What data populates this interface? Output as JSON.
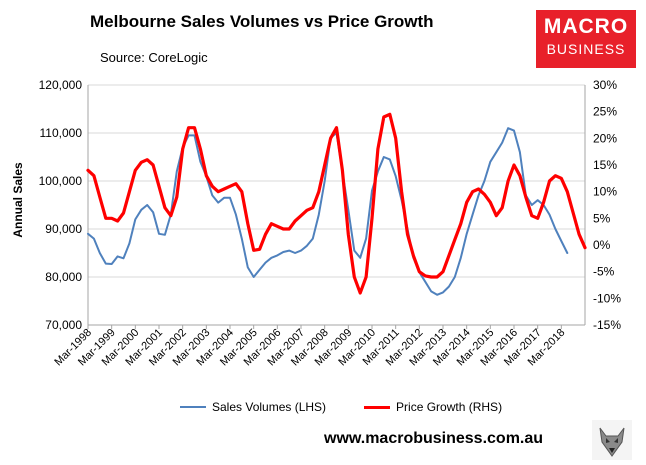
{
  "header": {
    "title": "Melbourne Sales Volumes vs Price Growth",
    "source": "Source: CoreLogic"
  },
  "logo": {
    "line1": "MACRO",
    "line2": "BUSINESS"
  },
  "footer": {
    "website": "www.macrobusiness.com.au"
  },
  "colors": {
    "sales": "#4f81bd",
    "price": "#ff0000"
  },
  "icons": {
    "wolf": "wolf-logo-icon"
  },
  "chart_data": {
    "type": "line",
    "title": "Melbourne Sales Volumes vs Price Growth",
    "ylabel_left": "Annual Sales",
    "ylim_left": [
      70000,
      120000
    ],
    "ylim_right": [
      -15,
      30
    ],
    "left_ticks": [
      "70,000",
      "80,000",
      "90,000",
      "100,000",
      "110,000",
      "120,000"
    ],
    "right_ticks": [
      "-15%",
      "-10%",
      "-5%",
      "0%",
      "5%",
      "10%",
      "15%",
      "20%",
      "25%",
      "30%"
    ],
    "x_tick_labels": [
      "Mar-1998",
      "Mar-1999",
      "Mar-2000",
      "Mar-2001",
      "Mar-2002",
      "Mar-2003",
      "Mar-2004",
      "Mar-2005",
      "Mar-2006",
      "Mar-2007",
      "Mar-2008",
      "Mar-2009",
      "Mar-2010",
      "Mar-2011",
      "Mar-2012",
      "Mar-2013",
      "Mar-2014",
      "Mar-2015",
      "Mar-2016",
      "Mar-2017",
      "Mar-2018"
    ],
    "grid": true,
    "legend_position": "bottom",
    "series": [
      {
        "name": "Sales Volumes (LHS)",
        "axis": "left",
        "points": [
          [
            1998.0,
            89000
          ],
          [
            1998.25,
            88000
          ],
          [
            1998.5,
            85000
          ],
          [
            1998.75,
            82800
          ],
          [
            1999.0,
            82700
          ],
          [
            1999.25,
            84300
          ],
          [
            1999.5,
            83900
          ],
          [
            1999.75,
            87000
          ],
          [
            2000.0,
            92000
          ],
          [
            2000.25,
            94000
          ],
          [
            2000.5,
            95000
          ],
          [
            2000.75,
            93500
          ],
          [
            2001.0,
            89000
          ],
          [
            2001.25,
            88800
          ],
          [
            2001.5,
            93000
          ],
          [
            2001.75,
            102000
          ],
          [
            2002.0,
            107000
          ],
          [
            2002.25,
            109500
          ],
          [
            2002.5,
            109500
          ],
          [
            2002.75,
            104000
          ],
          [
            2003.0,
            101000
          ],
          [
            2003.25,
            97000
          ],
          [
            2003.5,
            95500
          ],
          [
            2003.75,
            96500
          ],
          [
            2004.0,
            96500
          ],
          [
            2004.25,
            93000
          ],
          [
            2004.5,
            88000
          ],
          [
            2004.75,
            82000
          ],
          [
            2005.0,
            80000
          ],
          [
            2005.25,
            81500
          ],
          [
            2005.5,
            83000
          ],
          [
            2005.75,
            84000
          ],
          [
            2006.0,
            84500
          ],
          [
            2006.25,
            85200
          ],
          [
            2006.5,
            85500
          ],
          [
            2006.75,
            85000
          ],
          [
            2007.0,
            85500
          ],
          [
            2007.25,
            86500
          ],
          [
            2007.5,
            88000
          ],
          [
            2007.75,
            93000
          ],
          [
            2008.0,
            100000
          ],
          [
            2008.25,
            109000
          ],
          [
            2008.5,
            110000
          ],
          [
            2008.75,
            102000
          ],
          [
            2009.0,
            94000
          ],
          [
            2009.25,
            85500
          ],
          [
            2009.5,
            84000
          ],
          [
            2009.75,
            88000
          ],
          [
            2010.0,
            98000
          ],
          [
            2010.25,
            102000
          ],
          [
            2010.5,
            105000
          ],
          [
            2010.75,
            104500
          ],
          [
            2011.0,
            101000
          ],
          [
            2011.25,
            96000
          ],
          [
            2011.5,
            90000
          ],
          [
            2011.75,
            84000
          ],
          [
            2012.0,
            81000
          ],
          [
            2012.25,
            79000
          ],
          [
            2012.5,
            77000
          ],
          [
            2012.75,
            76300
          ],
          [
            2013.0,
            76800
          ],
          [
            2013.25,
            78000
          ],
          [
            2013.5,
            80000
          ],
          [
            2013.75,
            84000
          ],
          [
            2014.0,
            89000
          ],
          [
            2014.25,
            93000
          ],
          [
            2014.5,
            97000
          ],
          [
            2014.75,
            100000
          ],
          [
            2015.0,
            104000
          ],
          [
            2015.25,
            106000
          ],
          [
            2015.5,
            108000
          ],
          [
            2015.75,
            111000
          ],
          [
            2016.0,
            110500
          ],
          [
            2016.25,
            106000
          ],
          [
            2016.5,
            97000
          ],
          [
            2016.75,
            95000
          ],
          [
            2017.0,
            96000
          ],
          [
            2017.25,
            95000
          ],
          [
            2017.5,
            93000
          ],
          [
            2017.75,
            90000
          ],
          [
            2018.0,
            87500
          ],
          [
            2018.25,
            85000
          ]
        ]
      },
      {
        "name": "Price Growth (RHS)",
        "axis": "right",
        "points": [
          [
            1998.0,
            14
          ],
          [
            1998.25,
            13
          ],
          [
            1998.5,
            9
          ],
          [
            1998.75,
            5
          ],
          [
            1999.0,
            5
          ],
          [
            1999.25,
            4.5
          ],
          [
            1999.5,
            6
          ],
          [
            1999.75,
            10
          ],
          [
            2000.0,
            14
          ],
          [
            2000.25,
            15.5
          ],
          [
            2000.5,
            16
          ],
          [
            2000.75,
            15
          ],
          [
            2001.0,
            11
          ],
          [
            2001.25,
            7
          ],
          [
            2001.5,
            5.5
          ],
          [
            2001.75,
            9
          ],
          [
            2002.0,
            18
          ],
          [
            2002.25,
            22
          ],
          [
            2002.5,
            22
          ],
          [
            2002.75,
            18
          ],
          [
            2003.0,
            13
          ],
          [
            2003.25,
            11
          ],
          [
            2003.5,
            10
          ],
          [
            2003.75,
            10.5
          ],
          [
            2004.0,
            11
          ],
          [
            2004.25,
            11.5
          ],
          [
            2004.5,
            10
          ],
          [
            2004.75,
            4
          ],
          [
            2005.0,
            -1
          ],
          [
            2005.25,
            -0.8
          ],
          [
            2005.5,
            2
          ],
          [
            2005.75,
            4
          ],
          [
            2006.0,
            3.5
          ],
          [
            2006.25,
            3
          ],
          [
            2006.5,
            3
          ],
          [
            2006.75,
            4.5
          ],
          [
            2007.0,
            5.5
          ],
          [
            2007.25,
            6.5
          ],
          [
            2007.5,
            7
          ],
          [
            2007.75,
            10
          ],
          [
            2008.0,
            15
          ],
          [
            2008.25,
            20
          ],
          [
            2008.5,
            22
          ],
          [
            2008.75,
            14
          ],
          [
            2009.0,
            2
          ],
          [
            2009.25,
            -6
          ],
          [
            2009.5,
            -9
          ],
          [
            2009.75,
            -6
          ],
          [
            2010.0,
            5
          ],
          [
            2010.25,
            18
          ],
          [
            2010.5,
            24
          ],
          [
            2010.75,
            24.5
          ],
          [
            2011.0,
            20
          ],
          [
            2011.25,
            10
          ],
          [
            2011.5,
            2
          ],
          [
            2011.75,
            -2
          ],
          [
            2012.0,
            -5
          ],
          [
            2012.25,
            -5.8
          ],
          [
            2012.5,
            -6
          ],
          [
            2012.75,
            -6
          ],
          [
            2013.0,
            -5
          ],
          [
            2013.25,
            -2
          ],
          [
            2013.5,
            1
          ],
          [
            2013.75,
            4
          ],
          [
            2014.0,
            8
          ],
          [
            2014.25,
            10
          ],
          [
            2014.5,
            10.5
          ],
          [
            2014.75,
            9.5
          ],
          [
            2015.0,
            8
          ],
          [
            2015.25,
            5.5
          ],
          [
            2015.5,
            7
          ],
          [
            2015.75,
            12
          ],
          [
            2016.0,
            15
          ],
          [
            2016.25,
            13
          ],
          [
            2016.5,
            9
          ],
          [
            2016.75,
            5.5
          ],
          [
            2017.0,
            5
          ],
          [
            2017.25,
            8
          ],
          [
            2017.5,
            12
          ],
          [
            2017.75,
            13
          ],
          [
            2018.0,
            12.5
          ],
          [
            2018.25,
            10
          ],
          [
            2018.5,
            6
          ],
          [
            2018.75,
            2
          ],
          [
            2019.0,
            -0.5
          ]
        ]
      }
    ]
  }
}
